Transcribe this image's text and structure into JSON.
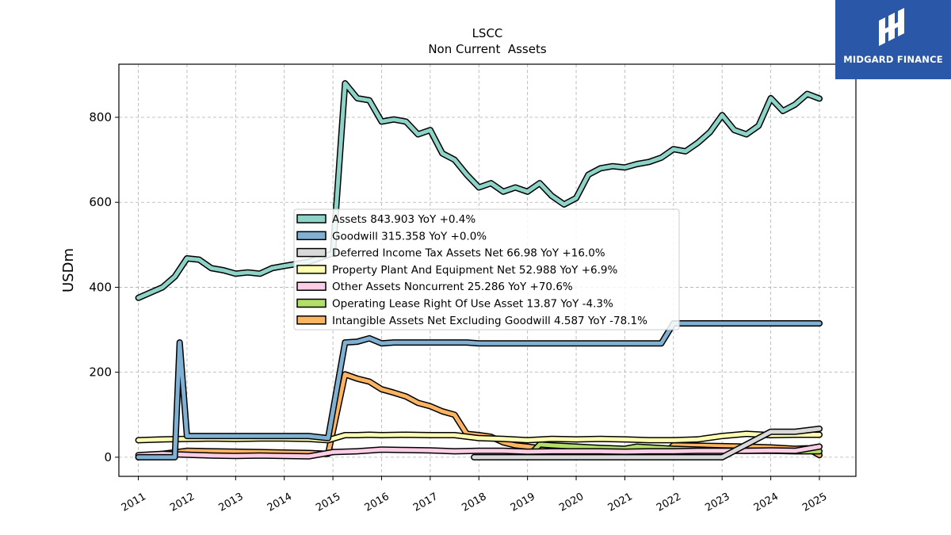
{
  "logo": {
    "text": "MIDGARD FINANCE",
    "icon": "midgard-m-icon",
    "color": "#2a57a8"
  },
  "chart_data": {
    "type": "line",
    "title": "LSCC",
    "subtitle": "Non Current  Assets",
    "ylabel": "USDm",
    "xlabel": "",
    "xlim": [
      2010.6,
      2025.75
    ],
    "ylim": [
      -45,
      925
    ],
    "yticks": [
      0,
      200,
      400,
      600,
      800
    ],
    "xticks": [
      "2011",
      "2012",
      "2013",
      "2014",
      "2015",
      "2016",
      "2017",
      "2018",
      "2019",
      "2020",
      "2021",
      "2022",
      "2023",
      "2024",
      "2025"
    ],
    "grid": true,
    "legend_position": "center",
    "series": [
      {
        "name": "Assets",
        "legend": "Assets  843.903 YoY +0.4%",
        "color": "#8dd3c7",
        "x": [
          2011.0,
          2011.5,
          2011.75,
          2012.0,
          2012.25,
          2012.5,
          2012.75,
          2013.0,
          2013.25,
          2013.5,
          2013.75,
          2014.0,
          2014.25,
          2014.5,
          2014.75,
          2015.0,
          2015.25,
          2015.5,
          2015.75,
          2016.0,
          2016.25,
          2016.5,
          2016.75,
          2017.0,
          2017.25,
          2017.5,
          2017.75,
          2018.0,
          2018.25,
          2018.5,
          2018.75,
          2019.0,
          2019.25,
          2019.5,
          2019.75,
          2020.0,
          2020.25,
          2020.5,
          2020.75,
          2021.0,
          2021.25,
          2021.5,
          2021.75,
          2022.0,
          2022.25,
          2022.5,
          2022.75,
          2023.0,
          2023.25,
          2023.5,
          2023.75,
          2024.0,
          2024.25,
          2024.5,
          2024.75,
          2025.0
        ],
        "y": [
          375,
          400,
          425,
          468,
          465,
          445,
          440,
          432,
          435,
          432,
          445,
          450,
          455,
          460,
          470,
          480,
          880,
          845,
          840,
          790,
          795,
          790,
          760,
          770,
          715,
          700,
          665,
          635,
          645,
          625,
          635,
          625,
          645,
          615,
          595,
          610,
          665,
          680,
          685,
          682,
          690,
          695,
          705,
          725,
          720,
          740,
          765,
          805,
          770,
          760,
          780,
          845,
          815,
          830,
          855,
          844
        ]
      },
      {
        "name": "Goodwill",
        "legend": "Goodwill  315.358 YoY +0.0%",
        "color": "#80b1d3",
        "x": [
          2011.0,
          2011.5,
          2011.75,
          2011.85,
          2012.0,
          2012.25,
          2012.5,
          2013.0,
          2013.5,
          2014.0,
          2014.5,
          2014.9,
          2015.25,
          2015.5,
          2015.75,
          2016.0,
          2016.25,
          2016.5,
          2017.0,
          2017.5,
          2017.75,
          2018.0,
          2018.5,
          2019.0,
          2019.5,
          2020.0,
          2020.5,
          2021.0,
          2021.5,
          2021.75,
          2022.0,
          2022.5,
          2023.0,
          2024.0,
          2025.0
        ],
        "y": [
          0,
          0,
          0,
          270,
          50,
          50,
          50,
          50,
          50,
          50,
          50,
          45,
          270,
          272,
          280,
          268,
          270,
          270,
          270,
          270,
          270,
          268,
          268,
          268,
          268,
          268,
          268,
          268,
          268,
          268,
          315,
          315,
          315,
          315,
          315
        ]
      },
      {
        "name": "Deferred Income Tax Assets Net",
        "legend": "Deferred Income Tax Assets Net  66.98 YoY +16.0%",
        "color": "#d9d9d9",
        "x": [
          2017.9,
          2018.5,
          2019.0,
          2019.5,
          2020.0,
          2020.5,
          2021.0,
          2021.5,
          2022.0,
          2022.5,
          2023.0,
          2023.5,
          2023.75,
          2024.0,
          2024.5,
          2025.0
        ],
        "y": [
          0,
          0,
          0,
          0,
          0,
          0,
          0,
          0,
          0,
          0,
          0,
          30,
          45,
          60,
          60,
          67
        ]
      },
      {
        "name": "Property Plant And Equipment Net",
        "legend": "Property Plant And Equipment Net  52.988 YoY +6.9%",
        "color": "#ffffb3",
        "x": [
          2011.0,
          2011.5,
          2012.0,
          2012.5,
          2013.0,
          2013.5,
          2014.0,
          2014.5,
          2014.9,
          2015.25,
          2015.5,
          2015.75,
          2016.0,
          2016.5,
          2017.0,
          2017.5,
          2018.0,
          2018.5,
          2019.0,
          2019.5,
          2020.0,
          2020.5,
          2021.0,
          2021.5,
          2022.0,
          2022.5,
          2023.0,
          2023.5,
          2024.0,
          2024.5,
          2025.0
        ],
        "y": [
          40,
          42,
          43,
          44,
          43,
          44,
          44,
          43,
          40,
          52,
          52,
          53,
          52,
          53,
          52,
          52,
          45,
          43,
          40,
          43,
          42,
          43,
          42,
          40,
          40,
          42,
          50,
          55,
          52,
          53,
          53
        ]
      },
      {
        "name": "Other Assets Noncurrent",
        "legend": "Other Assets Noncurrent  25.286 YoY +70.6%",
        "color": "#fccde5",
        "x": [
          2011.0,
          2011.5,
          2012.0,
          2012.5,
          2013.0,
          2013.5,
          2014.0,
          2014.5,
          2015.0,
          2015.5,
          2016.0,
          2016.5,
          2017.0,
          2017.5,
          2018.0,
          2018.5,
          2019.0,
          2019.5,
          2020.0,
          2020.5,
          2021.0,
          2021.5,
          2022.0,
          2022.5,
          2023.0,
          2023.5,
          2024.0,
          2024.5,
          2025.0
        ],
        "y": [
          5,
          8,
          6,
          4,
          3,
          4,
          3,
          2,
          12,
          14,
          18,
          17,
          16,
          14,
          15,
          15,
          13,
          14,
          14,
          14,
          13,
          14,
          14,
          15,
          15,
          15,
          16,
          15,
          25
        ]
      },
      {
        "name": "Operating Lease Right Of Use Asset",
        "legend": "Operating Lease Right Of Use Asset  13.87 YoY -4.3%",
        "color": "#b3de69",
        "x": [
          2019.0,
          2019.25,
          2019.5,
          2020.0,
          2020.5,
          2021.0,
          2021.25,
          2021.5,
          2022.0,
          2022.5,
          2023.0,
          2023.5,
          2024.0,
          2024.5,
          2025.0
        ],
        "y": [
          0,
          30,
          28,
          25,
          22,
          20,
          25,
          23,
          20,
          18,
          16,
          15,
          15,
          14,
          14
        ]
      },
      {
        "name": "Intangible Assets Net Excluding Goodwill",
        "legend": "Intangible Assets Net Excluding Goodwill  4.587 YoY -78.1%",
        "color": "#fdb462",
        "x": [
          2011.0,
          2011.5,
          2012.0,
          2012.5,
          2013.0,
          2013.5,
          2014.0,
          2014.5,
          2014.9,
          2015.25,
          2015.5,
          2015.75,
          2016.0,
          2016.25,
          2016.5,
          2016.75,
          2017.0,
          2017.25,
          2017.5,
          2017.75,
          2018.0,
          2018.25,
          2018.5,
          2018.75,
          2019.0,
          2019.5,
          2020.0,
          2020.5,
          2021.0,
          2021.5,
          2021.75,
          2022.0,
          2022.5,
          2023.0,
          2023.5,
          2024.0,
          2024.5,
          2024.75,
          2025.0
        ],
        "y": [
          0,
          8,
          15,
          14,
          13,
          12,
          11,
          10,
          8,
          195,
          185,
          178,
          160,
          152,
          143,
          128,
          120,
          108,
          100,
          55,
          52,
          48,
          35,
          28,
          25,
          18,
          8,
          5,
          3,
          2,
          2,
          28,
          27,
          26,
          25,
          23,
          20,
          21,
          5
        ]
      }
    ]
  }
}
